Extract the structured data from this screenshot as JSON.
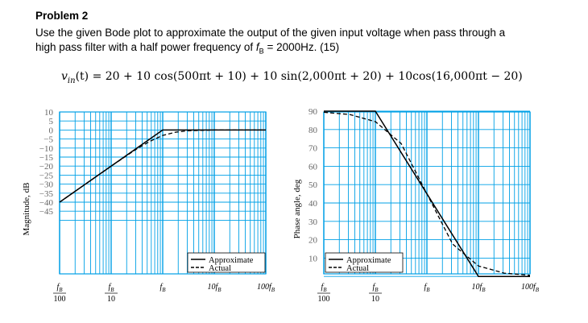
{
  "problem": {
    "title": "Problem 2",
    "line1": "Use the given Bode plot to approximate the output of the given input voltage when pass through a",
    "line2_pre": "high pass filter with a half power frequency of ",
    "line2_var": "f",
    "line2_sub": "B",
    "line2_post": " = 2000Hz. (15)",
    "equation_lhs_var": "v",
    "equation_lhs_sub": "in",
    "equation_lhs_arg": "(t)",
    "equation_rhs": " = 20 + 10 cos(500πt + 10) + 10 sin(2,000πt + 20) + 10cos(16,000πt − 20)"
  },
  "colors": {
    "grid": "#00a0e6",
    "curve": "#000000",
    "frame": "#333333"
  },
  "chart_data": [
    {
      "type": "line",
      "ylabel": "Magnitude, dB",
      "y_ticks": [
        "10",
        "5",
        "0",
        "−5",
        "−10",
        "−15",
        "−20",
        "−25",
        "−30",
        "−35",
        "−40",
        "−45"
      ],
      "y_values": [
        10,
        5,
        0,
        -5,
        -10,
        -15,
        -20,
        -25,
        -30,
        -35,
        -40,
        -45
      ],
      "ylim": [
        -50,
        10
      ],
      "x_ticks": [
        {
          "num": "f",
          "sub": "B",
          "den": "100",
          "decade": -2
        },
        {
          "num": "f",
          "sub": "B",
          "den": "10",
          "decade": -1
        },
        {
          "num": "f",
          "sub": "B",
          "den": "",
          "decade": 0
        },
        {
          "num": "10f",
          "sub": "B",
          "den": "",
          "decade": 1
        },
        {
          "num": "100f",
          "sub": "B",
          "den": "",
          "decade": 2
        }
      ],
      "x_scale": "log",
      "legend": [
        "Approximate",
        "Actual"
      ],
      "legend_position": "bottom-right",
      "series": [
        {
          "name": "Approximate",
          "style": "solid",
          "x_decade": [
            -2,
            0,
            2
          ],
          "y": [
            -40,
            0,
            0
          ]
        },
        {
          "name": "Actual",
          "style": "dashed",
          "x_decade": [
            -2,
            -1,
            -0.5,
            -0.25,
            0,
            0.25,
            0.5,
            1,
            2
          ],
          "y": [
            -40,
            -20,
            -10.4,
            -6.3,
            -3,
            -1.2,
            -0.4,
            0,
            0
          ]
        }
      ]
    },
    {
      "type": "line",
      "ylabel": "Phase angle, deg",
      "y_ticks": [
        "90",
        "80",
        "70",
        "60",
        "50",
        "40",
        "30",
        "20",
        "10"
      ],
      "y_values": [
        90,
        80,
        70,
        60,
        50,
        40,
        30,
        20,
        10
      ],
      "ylim": [
        0,
        90
      ],
      "x_ticks": [
        {
          "num": "f",
          "sub": "B",
          "den": "100",
          "decade": -2
        },
        {
          "num": "f",
          "sub": "B",
          "den": "10",
          "decade": -1
        },
        {
          "num": "f",
          "sub": "B",
          "den": "",
          "decade": 0
        },
        {
          "num": "10f",
          "sub": "B",
          "den": "",
          "decade": 1
        },
        {
          "num": "100f",
          "sub": "B",
          "den": "",
          "decade": 2
        }
      ],
      "x_scale": "log",
      "legend": [
        "Approximate",
        "Actual"
      ],
      "legend_position": "bottom-left",
      "series": [
        {
          "name": "Approximate",
          "style": "solid",
          "x_decade": [
            -2,
            -1,
            1,
            2
          ],
          "y": [
            90,
            90,
            0,
            0
          ]
        },
        {
          "name": "Actual",
          "style": "dashed",
          "x_decade": [
            -2,
            -1.5,
            -1,
            -0.5,
            0,
            0.5,
            1,
            1.5,
            2
          ],
          "y": [
            89.4,
            88.2,
            84.3,
            72.4,
            45,
            17.6,
            5.7,
            1.8,
            0.6
          ]
        }
      ]
    }
  ]
}
